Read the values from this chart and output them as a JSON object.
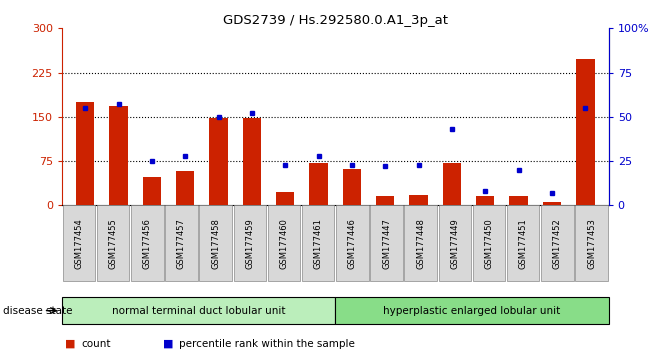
{
  "title": "GDS2739 / Hs.292580.0.A1_3p_at",
  "categories": [
    "GSM177454",
    "GSM177455",
    "GSM177456",
    "GSM177457",
    "GSM177458",
    "GSM177459",
    "GSM177460",
    "GSM177461",
    "GSM177446",
    "GSM177447",
    "GSM177448",
    "GSM177449",
    "GSM177450",
    "GSM177451",
    "GSM177452",
    "GSM177453"
  ],
  "counts": [
    175,
    168,
    48,
    58,
    148,
    148,
    22,
    72,
    62,
    15,
    18,
    72,
    15,
    15,
    5,
    248
  ],
  "percentiles": [
    55,
    57,
    25,
    28,
    50,
    52,
    23,
    28,
    23,
    22,
    23,
    43,
    8,
    20,
    7,
    55
  ],
  "group1_label": "normal terminal duct lobular unit",
  "group2_label": "hyperplastic enlarged lobular unit",
  "group1_count": 8,
  "group2_count": 8,
  "ylim_left": [
    0,
    300
  ],
  "ylim_right": [
    0,
    100
  ],
  "yticks_left": [
    0,
    75,
    150,
    225,
    300
  ],
  "yticks_right": [
    0,
    25,
    50,
    75,
    100
  ],
  "ytick_labels_left": [
    "0",
    "75",
    "150",
    "225",
    "300"
  ],
  "ytick_labels_right": [
    "0",
    "25",
    "50",
    "75",
    "100%"
  ],
  "bar_color": "#cc2200",
  "dot_color": "#0000cc",
  "group1_bg": "#bbeebb",
  "group2_bg": "#88dd88",
  "legend_count_label": "count",
  "legend_percentile_label": "percentile rank within the sample",
  "disease_state_label": "disease state"
}
